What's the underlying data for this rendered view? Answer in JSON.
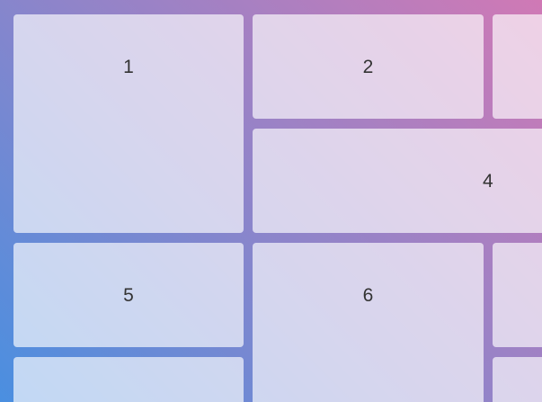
{
  "cells": [
    {
      "label": "1"
    },
    {
      "label": "2"
    },
    {
      "label": ""
    },
    {
      "label": "4"
    },
    {
      "label": "5"
    },
    {
      "label": "6"
    },
    {
      "label": ""
    },
    {
      "label": ""
    },
    {
      "label": ""
    }
  ]
}
